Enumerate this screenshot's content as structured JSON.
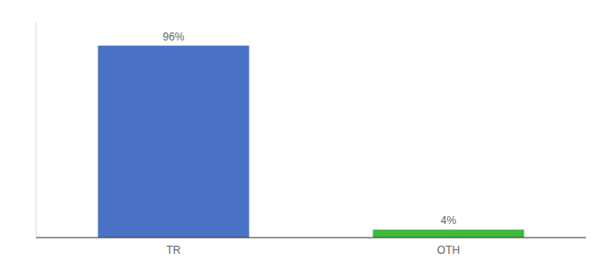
{
  "chart_data": {
    "type": "bar",
    "categories": [
      "TR",
      "OTH"
    ],
    "values": [
      96,
      4
    ],
    "value_labels": [
      "96%",
      "4%"
    ],
    "colors": [
      "#4a72c4",
      "#3dba3d"
    ],
    "ylim": [
      0,
      108
    ],
    "data_labels": true,
    "tick_labels": "x"
  }
}
